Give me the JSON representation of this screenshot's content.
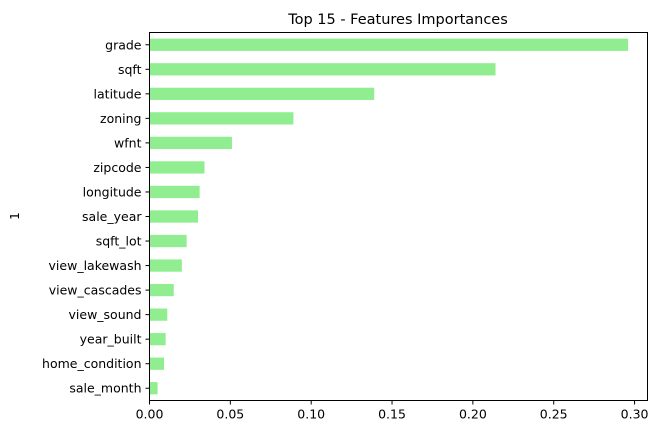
{
  "chart_data": {
    "type": "bar",
    "orientation": "horizontal",
    "title": "Top 15 - Features Importances",
    "xlabel": "",
    "ylabel": "1",
    "categories": [
      "grade",
      "sqft",
      "latitude",
      "zoning",
      "wfnt",
      "zipcode",
      "longitude",
      "sale_year",
      "sqft_lot",
      "view_lakewash",
      "view_cascades",
      "view_sound",
      "year_built",
      "home_condition",
      "sale_month"
    ],
    "values": [
      0.296,
      0.214,
      0.139,
      0.089,
      0.051,
      0.034,
      0.031,
      0.03,
      0.023,
      0.02,
      0.015,
      0.011,
      0.01,
      0.009,
      0.005
    ],
    "xlim": [
      0,
      0.308
    ],
    "xticks": [
      "0.00",
      "0.05",
      "0.10",
      "0.15",
      "0.20",
      "0.25",
      "0.30"
    ],
    "xtick_values": [
      0,
      0.05,
      0.1,
      0.15,
      0.2,
      0.25,
      0.3
    ],
    "grid": false,
    "legend": "none",
    "bar_color": "#90ee90"
  }
}
